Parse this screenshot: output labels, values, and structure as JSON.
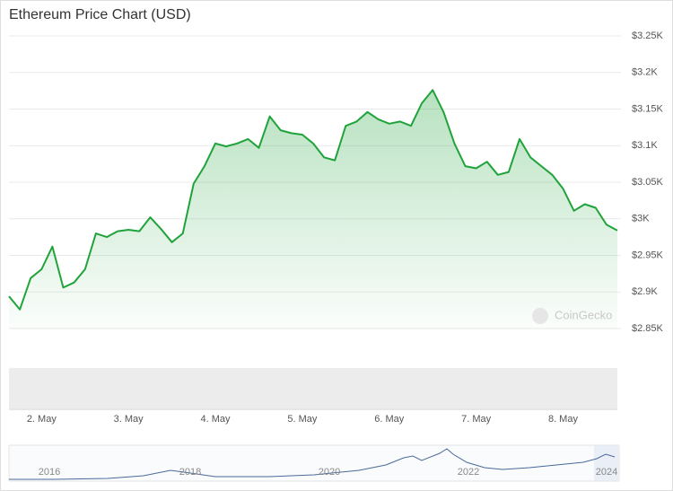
{
  "chart_data": {
    "type": "line",
    "title": "Ethereum Price Chart (USD)",
    "watermark": "CoinGecko",
    "categories": [
      null,
      null,
      null,
      "2. May",
      null,
      null,
      null,
      null,
      null,
      null,
      null,
      "3. May",
      null,
      null,
      null,
      null,
      null,
      null,
      null,
      "4. May",
      null,
      null,
      null,
      null,
      null,
      null,
      null,
      "5. May",
      null,
      null,
      null,
      null,
      null,
      null,
      null,
      "6. May",
      null,
      null,
      null,
      null,
      null,
      null,
      null,
      "7. May",
      null,
      null,
      null,
      null,
      null,
      null,
      null,
      "8. May",
      null,
      null,
      null,
      null,
      null
    ],
    "series": [
      {
        "name": "Price",
        "color": "#1fa33a",
        "values": [
          2894,
          2876,
          2919,
          2931,
          2962,
          2906,
          2913,
          2931,
          2980,
          2975,
          2983,
          2985,
          2983,
          3002,
          2986,
          2968,
          2980,
          3048,
          3072,
          3103,
          3099,
          3103,
          3109,
          3097,
          3140,
          3121,
          3117,
          3115,
          3103,
          3084,
          3080,
          3127,
          3133,
          3146,
          3136,
          3130,
          3133,
          3127,
          3158,
          3176,
          3146,
          3103,
          3072,
          3069,
          3078,
          3060,
          3064,
          3109,
          3084,
          3072,
          3060,
          3041,
          3011,
          3020,
          3015,
          2992,
          2984
        ]
      }
    ],
    "ylim": [
      2850,
      3250
    ],
    "yticks": [
      {
        "value": 2850,
        "label": "$2.85K"
      },
      {
        "value": 2900,
        "label": "$2.9K"
      },
      {
        "value": 2950,
        "label": "$2.95K"
      },
      {
        "value": 3000,
        "label": "$3K"
      },
      {
        "value": 3050,
        "label": "$3.05K"
      },
      {
        "value": 3100,
        "label": "$3.1K"
      },
      {
        "value": 3150,
        "label": "$3.15K"
      },
      {
        "value": 3200,
        "label": "$3.2K"
      },
      {
        "value": 3250,
        "label": "$3.25K"
      }
    ],
    "grid": true,
    "navigator_labels": [
      "2016",
      "2018",
      "2020",
      "2022",
      "2024"
    ]
  }
}
